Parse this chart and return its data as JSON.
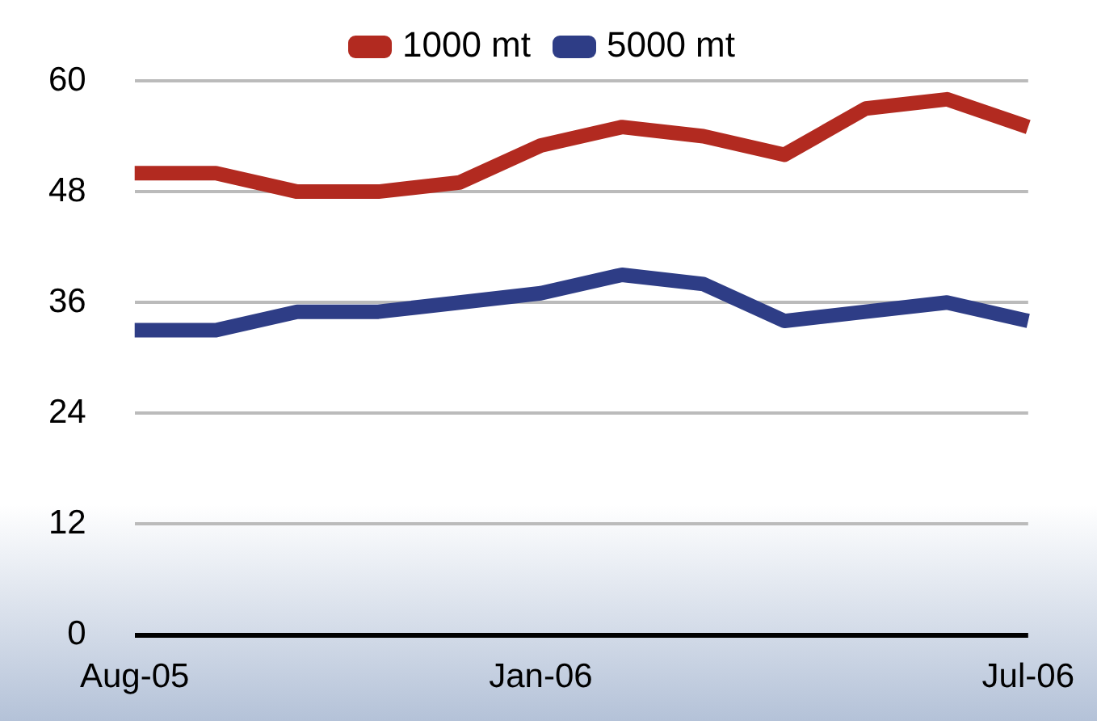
{
  "chart_data": {
    "type": "line",
    "categories": [
      "Aug-05",
      null,
      null,
      null,
      null,
      "Jan-06",
      null,
      null,
      null,
      null,
      null,
      "Jul-06"
    ],
    "series": [
      {
        "name": "1000 mt",
        "color": "#b22a20",
        "values": [
          50,
          50,
          48,
          48,
          49,
          53,
          55,
          54,
          52,
          57,
          58,
          55
        ]
      },
      {
        "name": "5000 mt",
        "color": "#2e3d86",
        "values": [
          33,
          33,
          35,
          35,
          36,
          37,
          39,
          38,
          34,
          35,
          36,
          34
        ]
      }
    ],
    "ylim": [
      0,
      60
    ],
    "yticks": [
      0,
      12,
      24,
      36,
      48,
      60
    ],
    "grid": "y",
    "legend": "top",
    "marker": "none",
    "line_style": "solid"
  }
}
